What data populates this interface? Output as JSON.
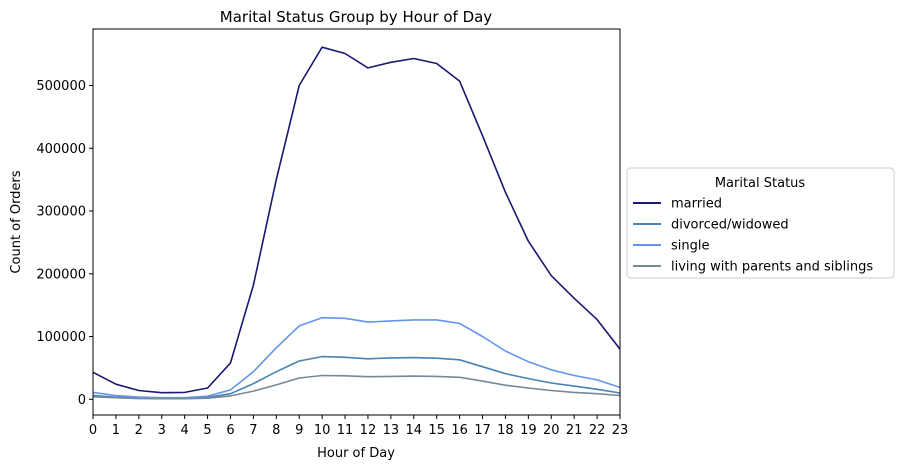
{
  "chart_data": {
    "type": "line",
    "title": "Marital Status Group by Hour of Day",
    "xlabel": "Hour of Day",
    "ylabel": "Count of Orders",
    "x": [
      0,
      1,
      2,
      3,
      4,
      5,
      6,
      7,
      8,
      9,
      10,
      11,
      12,
      13,
      14,
      15,
      16,
      17,
      18,
      19,
      20,
      21,
      22,
      23
    ],
    "xlim": [
      0,
      23
    ],
    "ylim": [
      -25000,
      590000
    ],
    "yticks": [
      0,
      100000,
      200000,
      300000,
      400000,
      500000
    ],
    "legend": {
      "title": "Marital Status",
      "placement": "center-right-outside"
    },
    "grid": false,
    "series": [
      {
        "name": "married",
        "color": "#191970",
        "values": [
          43000,
          24000,
          14000,
          10500,
          11000,
          18000,
          58000,
          182000,
          350000,
          500000,
          561000,
          551000,
          528000,
          537000,
          543000,
          535000,
          507000,
          420000,
          330000,
          252000,
          197000,
          161000,
          127000,
          80000
        ]
      },
      {
        "name": "divorced/widowed",
        "color": "#4682B4",
        "values": [
          6000,
          3500,
          2000,
          1500,
          1600,
          3000,
          9000,
          25000,
          44000,
          61000,
          68000,
          67000,
          64500,
          66000,
          66500,
          65500,
          63000,
          52000,
          41000,
          33000,
          26000,
          21000,
          16000,
          10000
        ]
      },
      {
        "name": "single",
        "color": "#6495ED",
        "values": [
          11000,
          6000,
          3500,
          2500,
          2500,
          5000,
          15000,
          44000,
          82000,
          117000,
          130000,
          129000,
          123000,
          125000,
          126500,
          126500,
          121000,
          100000,
          77000,
          60000,
          47000,
          38000,
          31000,
          19000
        ]
      },
      {
        "name": "living with parents and siblings",
        "color": "#778899",
        "values": [
          4000,
          2500,
          1200,
          900,
          900,
          1800,
          5500,
          13000,
          23000,
          34000,
          38000,
          37500,
          36000,
          36500,
          37000,
          36500,
          35000,
          29000,
          22500,
          18000,
          14000,
          11000,
          9000,
          6000
        ]
      }
    ]
  }
}
